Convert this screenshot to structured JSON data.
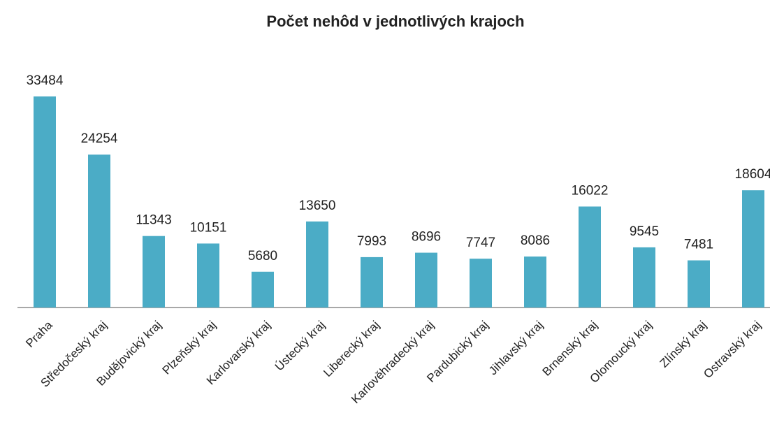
{
  "chart_data": {
    "type": "bar",
    "title": "Počet nehôd v jednotlivých krajoch",
    "categories": [
      "Praha",
      "Středočeský kraj",
      "Budějovický kraj",
      "Plzeňský kraj",
      "Karlovarský kraj",
      "Ústecký kraj",
      "Liberecký kraj",
      "Karlověhradecký kraj",
      "Pardubický kraj",
      "Jihlavský kraj",
      "Brnenský kraj",
      "Olomoucký kraj",
      "Zlínský kraj",
      "Ostravský kraj"
    ],
    "values": [
      33484,
      24254,
      11343,
      10151,
      5680,
      13650,
      7993,
      8696,
      7747,
      8086,
      16022,
      9545,
      7481,
      18604
    ],
    "color": "#4bacc6"
  }
}
